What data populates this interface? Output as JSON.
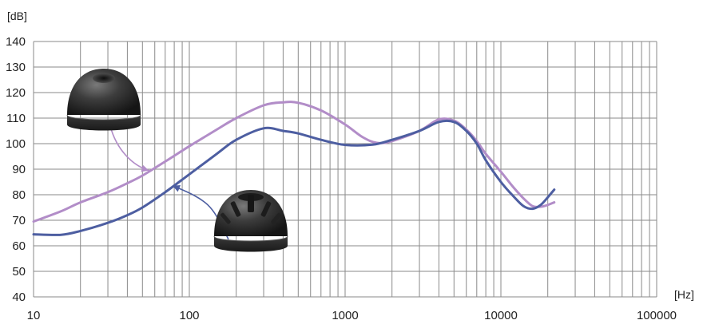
{
  "chart_data": {
    "type": "line",
    "title": "",
    "ylabel": "[dB]",
    "xlabel": "[Hz]",
    "x_scale": "log",
    "xlim": [
      10,
      100000
    ],
    "ylim": [
      40,
      140
    ],
    "grid": true,
    "x_ticks": [
      10,
      100,
      1000,
      10000,
      100000
    ],
    "x_tick_labels": [
      "10",
      "100",
      "1000",
      "10000",
      "100000"
    ],
    "y_ticks": [
      40,
      50,
      60,
      70,
      80,
      90,
      100,
      110,
      120,
      130,
      140
    ],
    "y_tick_labels": [
      "40",
      "50",
      "60",
      "70",
      "80",
      "90",
      "100",
      "110",
      "120",
      "130",
      "140"
    ],
    "series": [
      {
        "color": "#b28dc8",
        "description_icon": "closed-top-ear-tip",
        "points": [
          [
            10,
            69.5
          ],
          [
            15,
            73.5
          ],
          [
            20,
            77
          ],
          [
            30,
            81
          ],
          [
            40,
            84.5
          ],
          [
            50,
            87.5
          ],
          [
            70,
            93
          ],
          [
            100,
            99
          ],
          [
            150,
            105.5
          ],
          [
            200,
            110
          ],
          [
            300,
            115
          ],
          [
            400,
            116.2
          ],
          [
            500,
            116
          ],
          [
            700,
            113
          ],
          [
            1000,
            107.5
          ],
          [
            1300,
            102.5
          ],
          [
            1600,
            100.3
          ],
          [
            2000,
            101
          ],
          [
            3000,
            105
          ],
          [
            4000,
            109.5
          ],
          [
            5000,
            109
          ],
          [
            6000,
            105.5
          ],
          [
            7000,
            101
          ],
          [
            8000,
            96
          ],
          [
            10000,
            89
          ],
          [
            12000,
            83
          ],
          [
            14000,
            78.5
          ],
          [
            16000,
            75.5
          ],
          [
            18000,
            75.3
          ],
          [
            20000,
            76
          ],
          [
            22000,
            77
          ]
        ]
      },
      {
        "color": "#4d5ea1",
        "description_icon": "vented-ear-tip",
        "points": [
          [
            10,
            64.5
          ],
          [
            15,
            64.3
          ],
          [
            20,
            65.8
          ],
          [
            30,
            69
          ],
          [
            40,
            72
          ],
          [
            50,
            75
          ],
          [
            70,
            81
          ],
          [
            100,
            88
          ],
          [
            150,
            96
          ],
          [
            200,
            101.5
          ],
          [
            300,
            106
          ],
          [
            400,
            105
          ],
          [
            500,
            104
          ],
          [
            700,
            101.5
          ],
          [
            1000,
            99.5
          ],
          [
            1500,
            99.6
          ],
          [
            2000,
            101.5
          ],
          [
            3000,
            105
          ],
          [
            4000,
            108.5
          ],
          [
            5000,
            108.5
          ],
          [
            6000,
            105
          ],
          [
            7000,
            100
          ],
          [
            8000,
            93.5
          ],
          [
            10000,
            85
          ],
          [
            12000,
            79.5
          ],
          [
            14000,
            75.5
          ],
          [
            16000,
            74.5
          ],
          [
            18000,
            76
          ],
          [
            20000,
            79
          ],
          [
            22000,
            82
          ]
        ]
      }
    ],
    "annotations": [
      {
        "icon": "closed-top-ear-tip",
        "points_to_series": 0,
        "target": [
          55,
          89.5
        ]
      },
      {
        "icon": "vented-ear-tip",
        "points_to_series": 1,
        "target": [
          78,
          83.5
        ]
      }
    ]
  }
}
